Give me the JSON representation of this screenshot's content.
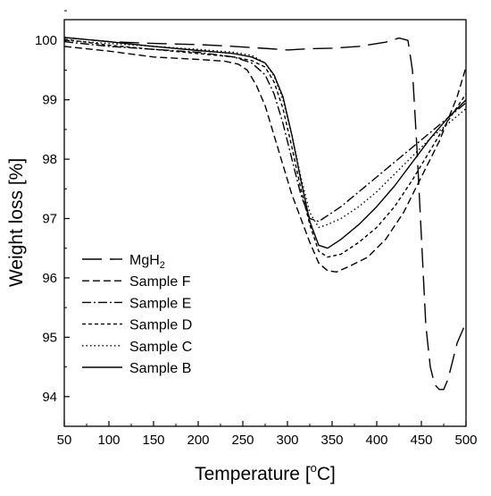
{
  "chart_data": {
    "type": "line",
    "title": "",
    "xlabel": "Temperature [°C]",
    "ylabel": "Weight loss [%]",
    "xlim": [
      50,
      500
    ],
    "ylim": [
      93.5,
      100.35
    ],
    "x_ticks": [
      50,
      100,
      150,
      200,
      250,
      300,
      350,
      400,
      450,
      500
    ],
    "y_ticks": [
      94,
      95,
      96,
      97,
      98,
      99,
      100
    ],
    "grid": false,
    "legend_position": "bottom-left",
    "series": [
      {
        "name": "MgH2",
        "name_main": "MgH",
        "name_sub": "2",
        "dash": "22,9",
        "color": "#000000",
        "x": [
          50,
          100,
          150,
          200,
          240,
          260,
          280,
          300,
          325,
          350,
          380,
          410,
          425,
          435,
          440,
          445,
          450,
          455,
          460,
          465,
          470,
          475,
          480,
          490,
          500
        ],
        "y": [
          100.05,
          99.98,
          99.95,
          99.93,
          99.9,
          99.88,
          99.86,
          99.84,
          99.86,
          99.87,
          99.9,
          99.97,
          100.04,
          100.0,
          99.5,
          98.2,
          96.7,
          95.2,
          94.5,
          94.2,
          94.12,
          94.12,
          94.3,
          94.9,
          95.25
        ]
      },
      {
        "name": "Sample F",
        "dash": "8,4",
        "color": "#000000",
        "x": [
          50,
          100,
          150,
          200,
          230,
          245,
          255,
          265,
          275,
          285,
          295,
          305,
          315,
          325,
          335,
          345,
          355,
          370,
          390,
          410,
          430,
          450,
          470,
          490,
          500
        ],
        "y": [
          99.9,
          99.82,
          99.72,
          99.68,
          99.65,
          99.6,
          99.5,
          99.25,
          98.9,
          98.4,
          97.9,
          97.4,
          97.0,
          96.6,
          96.25,
          96.12,
          96.1,
          96.2,
          96.35,
          96.65,
          97.1,
          97.7,
          98.3,
          99.05,
          99.55
        ]
      },
      {
        "name": "Sample E",
        "dash": "10,3,2,3",
        "color": "#000000",
        "x": [
          50,
          100,
          150,
          200,
          240,
          260,
          275,
          285,
          295,
          305,
          315,
          325,
          335,
          345,
          360,
          380,
          400,
          420,
          440,
          460,
          480,
          500
        ],
        "y": [
          99.98,
          99.9,
          99.85,
          99.8,
          99.72,
          99.62,
          99.42,
          99.1,
          98.6,
          98.0,
          97.4,
          97.0,
          96.95,
          97.05,
          97.2,
          97.45,
          97.7,
          97.95,
          98.2,
          98.45,
          98.7,
          98.95
        ]
      },
      {
        "name": "Sample D",
        "dash": "4,3",
        "color": "#000000",
        "x": [
          50,
          100,
          150,
          200,
          240,
          260,
          275,
          285,
          295,
          305,
          315,
          325,
          335,
          345,
          360,
          380,
          400,
          420,
          440,
          460,
          480,
          500
        ],
        "y": [
          100.02,
          99.92,
          99.85,
          99.78,
          99.72,
          99.66,
          99.55,
          99.3,
          98.85,
          98.2,
          97.5,
          96.9,
          96.45,
          96.35,
          96.4,
          96.6,
          96.85,
          97.2,
          97.65,
          98.15,
          98.65,
          99.1
        ]
      },
      {
        "name": "Sample C",
        "dash": "1.5,3",
        "color": "#000000",
        "x": [
          50,
          100,
          150,
          200,
          240,
          260,
          275,
          285,
          295,
          305,
          315,
          325,
          335,
          345,
          360,
          380,
          400,
          420,
          440,
          460,
          480,
          500
        ],
        "y": [
          100.0,
          99.95,
          99.9,
          99.85,
          99.8,
          99.75,
          99.62,
          99.4,
          99.0,
          98.4,
          97.7,
          97.1,
          96.85,
          96.9,
          97.0,
          97.2,
          97.45,
          97.75,
          98.05,
          98.35,
          98.6,
          98.85
        ]
      },
      {
        "name": "Sample B",
        "dash": "",
        "color": "#000000",
        "x": [
          50,
          100,
          150,
          200,
          240,
          260,
          275,
          285,
          295,
          305,
          315,
          325,
          335,
          345,
          360,
          380,
          400,
          420,
          440,
          460,
          480,
          500
        ],
        "y": [
          100.05,
          99.98,
          99.9,
          99.83,
          99.78,
          99.72,
          99.62,
          99.42,
          99.05,
          98.4,
          97.65,
          96.95,
          96.55,
          96.5,
          96.65,
          96.9,
          97.2,
          97.55,
          97.95,
          98.35,
          98.7,
          99.0
        ]
      }
    ]
  },
  "text": {
    "y_axis_title": "Weight loss [%]",
    "x_axis_title_prefix": "Temperature [",
    "x_axis_title_degree": "o",
    "x_axis_title_suffix": "C]"
  }
}
